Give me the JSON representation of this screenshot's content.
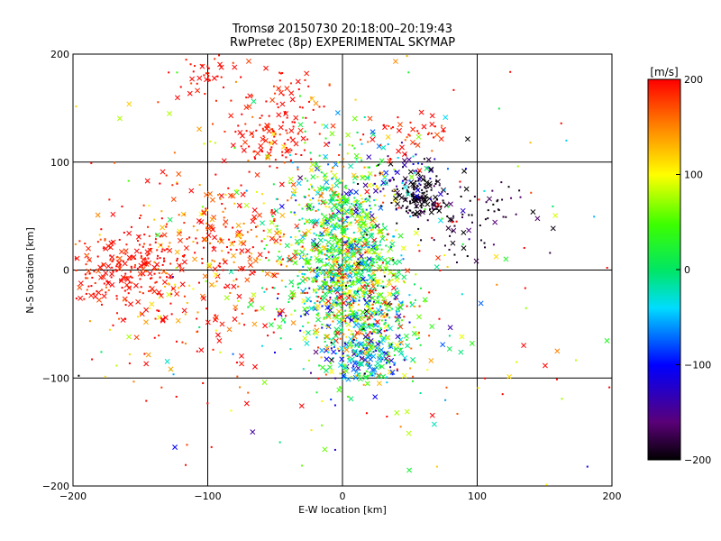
{
  "chart_data": {
    "type": "scatter",
    "title_line1": "Tromsø 20150730 20:18:00–20:19:43",
    "title_line2": "RwPretec (8p) EXPERIMENTAL SKYMAP",
    "xlabel": "E-W location [km]",
    "ylabel": "N-S location [km]",
    "xlim": [
      -200,
      200
    ],
    "ylim": [
      -200,
      200
    ],
    "xticks": [
      -200,
      -100,
      0,
      100,
      200
    ],
    "yticks": [
      -200,
      -100,
      0,
      100,
      200
    ],
    "grid": true,
    "markers": [
      "cross (x)",
      "small dot"
    ],
    "color_value_range": [
      -200,
      200
    ],
    "clusters": [
      {
        "cx": -2,
        "cy": 20,
        "sx": 22,
        "sy": 45,
        "n": 1100,
        "vmean": 30,
        "vsd": 80
      },
      {
        "cx": 20,
        "cy": -45,
        "sx": 18,
        "sy": 28,
        "n": 400,
        "vmean": 40,
        "vsd": 110
      },
      {
        "cx": 15,
        "cy": -80,
        "sx": 15,
        "sy": 12,
        "n": 150,
        "vmean": -40,
        "vsd": 70
      },
      {
        "cx": 58,
        "cy": 68,
        "sx": 10,
        "sy": 8,
        "n": 130,
        "vmean": -195,
        "vsd": 10
      },
      {
        "cx": 98,
        "cy": 45,
        "sx": 25,
        "sy": 18,
        "n": 70,
        "vmean": -190,
        "vsd": 15
      },
      {
        "cx": 48,
        "cy": 83,
        "sx": 18,
        "sy": 18,
        "n": 80,
        "vmean": -160,
        "vsd": 60
      },
      {
        "cx": -160,
        "cy": 0,
        "sx": 22,
        "sy": 18,
        "n": 220,
        "vmean": 195,
        "vsd": 12
      },
      {
        "cx": -55,
        "cy": 125,
        "sx": 15,
        "sy": 14,
        "n": 90,
        "vmean": 195,
        "vsd": 12
      },
      {
        "cx": -100,
        "cy": 180,
        "sx": 12,
        "sy": 10,
        "n": 40,
        "vmean": 195,
        "vsd": 10
      },
      {
        "cx": -40,
        "cy": 160,
        "sx": 15,
        "sy": 15,
        "n": 40,
        "vmean": 195,
        "vsd": 10
      },
      {
        "cx": 50,
        "cy": 125,
        "sx": 18,
        "sy": 14,
        "n": 40,
        "vmean": 190,
        "vsd": 15
      },
      {
        "cx": -90,
        "cy": 30,
        "sx": 35,
        "sy": 40,
        "n": 260,
        "vmean": 175,
        "vsd": 50
      },
      {
        "cx": -120,
        "cy": -50,
        "sx": 40,
        "sy": 40,
        "n": 90,
        "vmean": 180,
        "vsd": 50
      },
      {
        "cx": 0,
        "cy": 0,
        "sx": 115,
        "sy": 110,
        "n": 280,
        "vmean": 110,
        "vsd": 120
      }
    ]
  },
  "colorbar": {
    "title": "[m/s]",
    "min": -200,
    "max": 200,
    "ticks": [
      200,
      100,
      0,
      -100,
      -200
    ],
    "tick_labels": [
      "200",
      "100",
      "0",
      "−100",
      "−200"
    ]
  },
  "colors": {
    "background": "#ffffff",
    "axes": "#000000"
  }
}
